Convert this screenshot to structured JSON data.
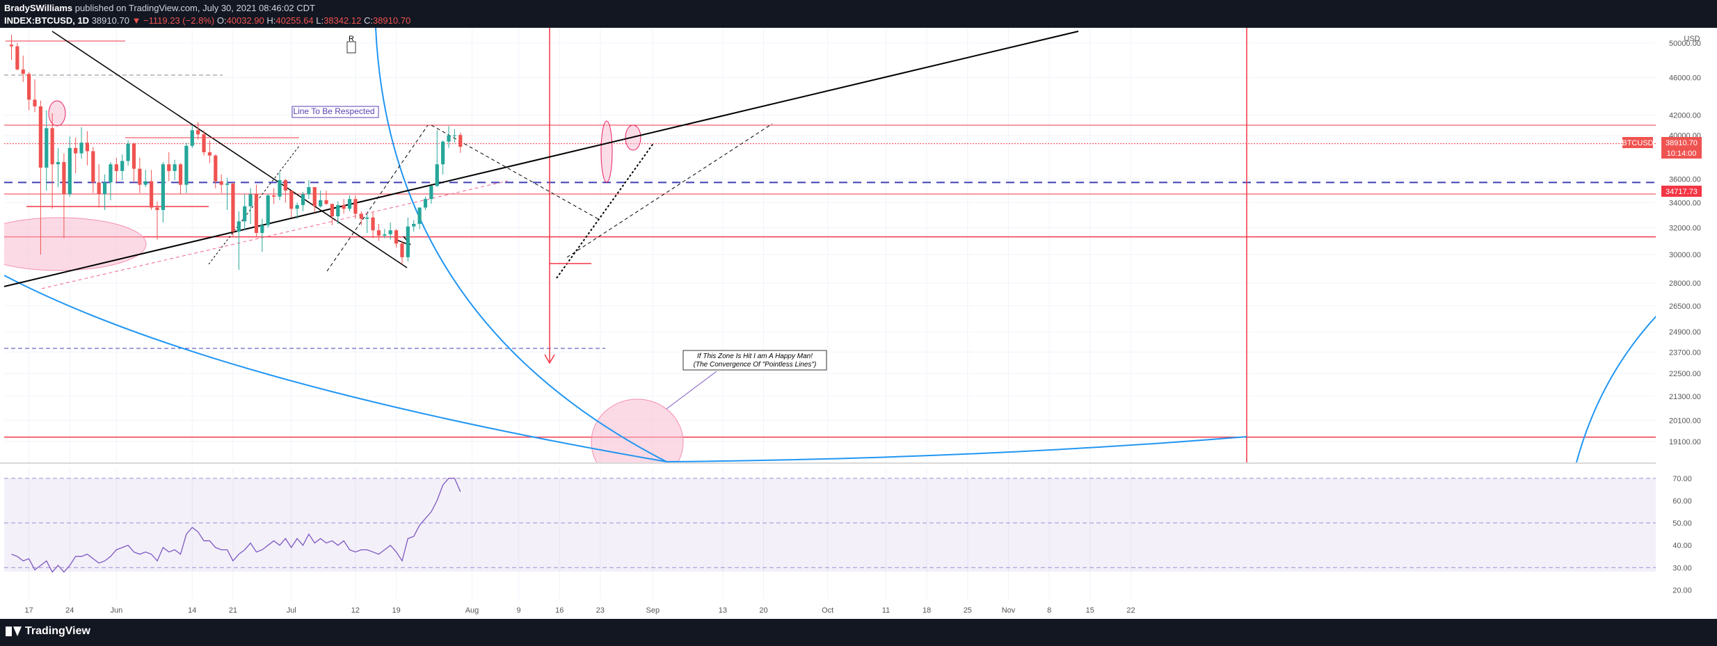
{
  "header": {
    "author": "BradySWilliams",
    "published_text": "published on TradingView.com, July 30, 2021 08:46:02 CDT",
    "symbol": "INDEX:BTCUSD, 1D",
    "last": "38910.70",
    "change": "▼ −1119.23 (−2.8%)",
    "o_label": "O:",
    "o_value": "40032.90",
    "h_label": "H:",
    "h_value": "40255.64",
    "l_label": "L:",
    "l_value": "38342.12",
    "c_label": "C:",
    "c_value": "38910.70"
  },
  "footer": {
    "brand": "TradingView",
    "logo_icon": "tradingview-logo-icon"
  },
  "colors": {
    "up": "#26a69a",
    "down": "#ef5350",
    "rsi": "#7e57c2",
    "curve": "#2196f3",
    "level": "#f23645"
  },
  "chart_data": {
    "type": "candlestick",
    "price_axis": {
      "currency": "USD",
      "tick_labels": [
        "50000.00",
        "46000.00",
        "42000.00",
        "40000.00",
        "36000.00",
        "34000.00",
        "32000.00",
        "30000.00",
        "28000.00",
        "26500.00",
        "24900.00",
        "23700.00",
        "22500.00",
        "21300.00",
        "20100.00",
        "19100.00"
      ],
      "scale": "log",
      "ylim": [
        18400,
        51000
      ]
    },
    "time_axis": {
      "tick_labels": [
        "17",
        "24",
        "Jun",
        "14",
        "21",
        "Jul",
        "12",
        "19",
        "Aug",
        "9",
        "16",
        "23",
        "Sep",
        "13",
        "20",
        "Oct",
        "11",
        "18",
        "25",
        "Nov",
        "8",
        "15",
        "22"
      ]
    },
    "price_tags": [
      {
        "label": "BTCUSD",
        "value": "38910.70"
      },
      {
        "label": "",
        "value": "10:14:00"
      },
      {
        "label": "",
        "value": "34717.73"
      }
    ],
    "annotations": [
      {
        "name": "line-to-be-respected",
        "text": "Line To Be Respected"
      },
      {
        "name": "happy-man-note",
        "text": "If This Zone Is Hit I am A Happy Man!",
        "text2": "(The Convergence Of \"Pointless Lines\")"
      },
      {
        "name": "r-marker",
        "text": "R"
      }
    ],
    "horizontal_levels": [
      41000,
      39200,
      35700,
      34717.73,
      31300,
      19300
    ],
    "candles": [
      {
        "d": "2021-05-14",
        "o": 49800,
        "h": 51000,
        "l": 48000,
        "c": 49600
      },
      {
        "d": "2021-05-15",
        "o": 49600,
        "h": 50000,
        "l": 46800,
        "c": 46900
      },
      {
        "d": "2021-05-16",
        "o": 46900,
        "h": 48500,
        "l": 45500,
        "c": 46400
      },
      {
        "d": "2021-05-17",
        "o": 46400,
        "h": 46600,
        "l": 42500,
        "c": 43600
      },
      {
        "d": "2021-05-18",
        "o": 43600,
        "h": 45800,
        "l": 42300,
        "c": 42900
      },
      {
        "d": "2021-05-19",
        "o": 42900,
        "h": 43500,
        "l": 30000,
        "c": 37000
      },
      {
        "d": "2021-05-20",
        "o": 37000,
        "h": 42500,
        "l": 35000,
        "c": 40700
      },
      {
        "d": "2021-05-21",
        "o": 40700,
        "h": 42200,
        "l": 33500,
        "c": 37300
      },
      {
        "d": "2021-05-22",
        "o": 37300,
        "h": 38800,
        "l": 35300,
        "c": 37500
      },
      {
        "d": "2021-05-23",
        "o": 37500,
        "h": 38300,
        "l": 31200,
        "c": 34700
      },
      {
        "d": "2021-05-24",
        "o": 34700,
        "h": 39900,
        "l": 34500,
        "c": 38800
      },
      {
        "d": "2021-05-25",
        "o": 38800,
        "h": 39800,
        "l": 36500,
        "c": 38300
      },
      {
        "d": "2021-05-26",
        "o": 38300,
        "h": 40800,
        "l": 37800,
        "c": 39300
      },
      {
        "d": "2021-05-27",
        "o": 39300,
        "h": 40400,
        "l": 37200,
        "c": 38500
      },
      {
        "d": "2021-05-28",
        "o": 38500,
        "h": 38900,
        "l": 34800,
        "c": 35700
      },
      {
        "d": "2021-05-29",
        "o": 35700,
        "h": 37300,
        "l": 33600,
        "c": 34700
      },
      {
        "d": "2021-05-30",
        "o": 34700,
        "h": 36400,
        "l": 33400,
        "c": 35700
      },
      {
        "d": "2021-05-31",
        "o": 35700,
        "h": 37500,
        "l": 34200,
        "c": 37300
      },
      {
        "d": "2021-06-01",
        "o": 37300,
        "h": 37900,
        "l": 35700,
        "c": 36700
      },
      {
        "d": "2021-06-02",
        "o": 36700,
        "h": 38200,
        "l": 35900,
        "c": 37600
      },
      {
        "d": "2021-06-03",
        "o": 37600,
        "h": 39500,
        "l": 37200,
        "c": 39200
      },
      {
        "d": "2021-06-04",
        "o": 39200,
        "h": 39300,
        "l": 35700,
        "c": 36900
      },
      {
        "d": "2021-06-05",
        "o": 36900,
        "h": 37900,
        "l": 34800,
        "c": 35500
      },
      {
        "d": "2021-06-06",
        "o": 35500,
        "h": 36800,
        "l": 35300,
        "c": 35800
      },
      {
        "d": "2021-06-07",
        "o": 35800,
        "h": 36800,
        "l": 33400,
        "c": 33600
      },
      {
        "d": "2021-06-08",
        "o": 33600,
        "h": 34100,
        "l": 31100,
        "c": 33400
      },
      {
        "d": "2021-06-09",
        "o": 33400,
        "h": 37500,
        "l": 32400,
        "c": 37300
      },
      {
        "d": "2021-06-10",
        "o": 37300,
        "h": 38400,
        "l": 35800,
        "c": 36700
      },
      {
        "d": "2021-06-11",
        "o": 36700,
        "h": 37700,
        "l": 35900,
        "c": 37300
      },
      {
        "d": "2021-06-12",
        "o": 37300,
        "h": 37400,
        "l": 34700,
        "c": 35500
      },
      {
        "d": "2021-06-13",
        "o": 35500,
        "h": 39300,
        "l": 34800,
        "c": 39000
      },
      {
        "d": "2021-06-14",
        "o": 39000,
        "h": 41000,
        "l": 38800,
        "c": 40500
      },
      {
        "d": "2021-06-15",
        "o": 40500,
        "h": 41300,
        "l": 39600,
        "c": 40100
      },
      {
        "d": "2021-06-16",
        "o": 40100,
        "h": 40500,
        "l": 38100,
        "c": 38400
      },
      {
        "d": "2021-06-17",
        "o": 38400,
        "h": 39500,
        "l": 37400,
        "c": 38100
      },
      {
        "d": "2021-06-18",
        "o": 38100,
        "h": 38200,
        "l": 35200,
        "c": 35800
      },
      {
        "d": "2021-06-19",
        "o": 35800,
        "h": 36400,
        "l": 34800,
        "c": 35500
      },
      {
        "d": "2021-06-20",
        "o": 35500,
        "h": 36100,
        "l": 33400,
        "c": 35600
      },
      {
        "d": "2021-06-21",
        "o": 35600,
        "h": 35700,
        "l": 31300,
        "c": 31700
      },
      {
        "d": "2021-06-22",
        "o": 31700,
        "h": 33300,
        "l": 28900,
        "c": 32500
      },
      {
        "d": "2021-06-23",
        "o": 32500,
        "h": 34700,
        "l": 31800,
        "c": 33700
      },
      {
        "d": "2021-06-24",
        "o": 33700,
        "h": 35200,
        "l": 32300,
        "c": 34700
      },
      {
        "d": "2021-06-25",
        "o": 34700,
        "h": 35500,
        "l": 31300,
        "c": 31600
      },
      {
        "d": "2021-06-26",
        "o": 31600,
        "h": 32700,
        "l": 30200,
        "c": 32200
      },
      {
        "d": "2021-06-27",
        "o": 32200,
        "h": 34700,
        "l": 32000,
        "c": 34600
      },
      {
        "d": "2021-06-28",
        "o": 34600,
        "h": 35200,
        "l": 33900,
        "c": 34500
      },
      {
        "d": "2021-06-29",
        "o": 34500,
        "h": 36600,
        "l": 34200,
        "c": 35900
      },
      {
        "d": "2021-06-30",
        "o": 35900,
        "h": 36000,
        "l": 34000,
        "c": 35000
      },
      {
        "d": "2021-07-01",
        "o": 35000,
        "h": 35000,
        "l": 32800,
        "c": 33500
      },
      {
        "d": "2021-07-02",
        "o": 33500,
        "h": 34000,
        "l": 32700,
        "c": 33800
      },
      {
        "d": "2021-07-03",
        "o": 33800,
        "h": 34900,
        "l": 33300,
        "c": 34700
      },
      {
        "d": "2021-07-04",
        "o": 34700,
        "h": 35900,
        "l": 34300,
        "c": 35300
      },
      {
        "d": "2021-07-05",
        "o": 35300,
        "h": 35300,
        "l": 33200,
        "c": 33700
      },
      {
        "d": "2021-07-06",
        "o": 33700,
        "h": 35000,
        "l": 33600,
        "c": 34200
      },
      {
        "d": "2021-07-07",
        "o": 34200,
        "h": 35000,
        "l": 33800,
        "c": 33900
      },
      {
        "d": "2021-07-08",
        "o": 33900,
        "h": 33900,
        "l": 32200,
        "c": 32900
      },
      {
        "d": "2021-07-09",
        "o": 32900,
        "h": 34100,
        "l": 32300,
        "c": 33800
      },
      {
        "d": "2021-07-10",
        "o": 33800,
        "h": 34300,
        "l": 33100,
        "c": 33500
      },
      {
        "d": "2021-07-11",
        "o": 33500,
        "h": 34600,
        "l": 33300,
        "c": 34300
      },
      {
        "d": "2021-07-12",
        "o": 34300,
        "h": 34600,
        "l": 32700,
        "c": 33100
      },
      {
        "d": "2021-07-13",
        "o": 33100,
        "h": 33300,
        "l": 32200,
        "c": 32700
      },
      {
        "d": "2021-07-14",
        "o": 32700,
        "h": 33100,
        "l": 31600,
        "c": 32800
      },
      {
        "d": "2021-07-15",
        "o": 32800,
        "h": 33200,
        "l": 31200,
        "c": 31800
      },
      {
        "d": "2021-07-16",
        "o": 31800,
        "h": 32300,
        "l": 31000,
        "c": 31400
      },
      {
        "d": "2021-07-17",
        "o": 31400,
        "h": 31900,
        "l": 31200,
        "c": 31500
      },
      {
        "d": "2021-07-18",
        "o": 31500,
        "h": 32400,
        "l": 31100,
        "c": 31800
      },
      {
        "d": "2021-07-19",
        "o": 31800,
        "h": 31900,
        "l": 30500,
        "c": 30800
      },
      {
        "d": "2021-07-20",
        "o": 30800,
        "h": 31000,
        "l": 29300,
        "c": 29800
      },
      {
        "d": "2021-07-21",
        "o": 29800,
        "h": 32800,
        "l": 29500,
        "c": 32100
      },
      {
        "d": "2021-07-22",
        "o": 32100,
        "h": 32600,
        "l": 31700,
        "c": 32300
      },
      {
        "d": "2021-07-23",
        "o": 32300,
        "h": 33600,
        "l": 31900,
        "c": 33600
      },
      {
        "d": "2021-07-24",
        "o": 33600,
        "h": 34500,
        "l": 33400,
        "c": 34300
      },
      {
        "d": "2021-07-25",
        "o": 34300,
        "h": 35400,
        "l": 33900,
        "c": 35400
      },
      {
        "d": "2021-07-26",
        "o": 35400,
        "h": 40500,
        "l": 35300,
        "c": 37300
      },
      {
        "d": "2021-07-27",
        "o": 37300,
        "h": 39500,
        "l": 36400,
        "c": 39400
      },
      {
        "d": "2021-07-28",
        "o": 39400,
        "h": 40900,
        "l": 38800,
        "c": 40000
      },
      {
        "d": "2021-07-29",
        "o": 40000,
        "h": 40600,
        "l": 39300,
        "c": 40000
      },
      {
        "d": "2021-07-30",
        "o": 40032.9,
        "h": 40255.64,
        "l": 38342.12,
        "c": 38910.7
      }
    ],
    "rsi": {
      "axis_labels": [
        "70.00",
        "60.00",
        "50.00",
        "40.00",
        "30.00",
        "20.00"
      ],
      "ylim": [
        17,
        74
      ],
      "bands": [
        30,
        50,
        70
      ],
      "values": [
        36,
        35,
        33,
        34,
        29,
        31,
        33,
        28,
        31,
        28,
        31,
        35,
        35,
        36,
        34,
        32,
        33,
        35,
        38,
        39,
        40,
        37,
        36,
        37,
        36,
        33,
        39,
        37,
        38,
        36,
        45,
        48,
        46,
        42,
        42,
        39,
        38,
        38,
        33,
        36,
        38,
        41,
        37,
        38,
        40,
        42,
        40,
        43,
        39,
        43,
        40,
        45,
        41,
        43,
        41,
        42,
        40,
        42,
        38,
        37,
        38,
        38,
        37,
        36,
        38,
        40,
        37,
        33,
        43,
        44,
        49,
        52,
        55,
        60,
        67,
        70,
        70,
        64
      ]
    }
  }
}
